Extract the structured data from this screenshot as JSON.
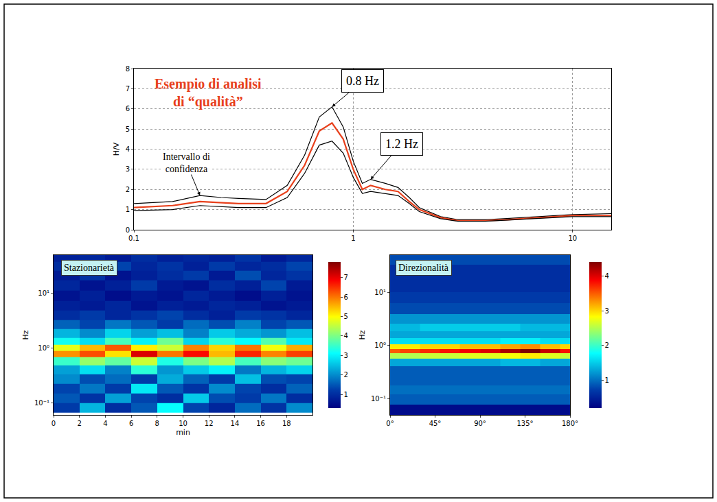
{
  "chart_data": [
    {
      "type": "line",
      "title": "Esempio di analisi di “qualità”",
      "color": "#e8401c",
      "ylabel": "H/V",
      "log": "x",
      "grid": true,
      "x": [
        0.1,
        0.15,
        0.2,
        0.25,
        0.3,
        0.4,
        0.5,
        0.6,
        0.7,
        0.8,
        0.9,
        1.0,
        1.1,
        1.2,
        1.4,
        1.6,
        1.8,
        2.0,
        2.5,
        3,
        4,
        5,
        7,
        10,
        15
      ],
      "series": [
        {
          "color": "#000000",
          "line_style": "solid",
          "values": [
            1.3,
            1.4,
            1.7,
            1.6,
            1.55,
            1.5,
            2.2,
            3.7,
            5.6,
            6.1,
            5.1,
            3.4,
            2.3,
            2.5,
            2.3,
            2.1,
            1.6,
            1.1,
            0.65,
            0.5,
            0.5,
            0.55,
            0.65,
            0.75,
            0.8
          ]
        },
        {
          "color": "#e8401c",
          "line_style": "solid",
          "values": [
            1.1,
            1.2,
            1.4,
            1.35,
            1.3,
            1.3,
            1.9,
            3.2,
            4.9,
            5.3,
            4.5,
            3.0,
            2.0,
            2.2,
            2.0,
            1.9,
            1.4,
            1.0,
            0.6,
            0.45,
            0.45,
            0.5,
            0.6,
            0.7,
            0.7
          ]
        },
        {
          "color": "#000000",
          "line_style": "solid",
          "values": [
            0.95,
            1.0,
            1.2,
            1.15,
            1.1,
            1.1,
            1.6,
            2.8,
            4.2,
            4.4,
            3.8,
            2.6,
            1.8,
            1.9,
            1.8,
            1.7,
            1.3,
            0.9,
            0.55,
            0.42,
            0.42,
            0.47,
            0.57,
            0.65,
            0.65
          ]
        }
      ],
      "xlim": [
        0.1,
        15
      ],
      "xticks": [
        0.1,
        1,
        10
      ],
      "ylim": [
        0,
        8
      ],
      "yticks": [
        0,
        1,
        2,
        3,
        4,
        5,
        6,
        7,
        8
      ],
      "annotations": [
        {
          "text": "0.8 Hz",
          "x": 0.8,
          "y": 6.1
        },
        {
          "text": "1.2 Hz",
          "x": 1.2,
          "y": 2.5
        },
        {
          "text": "Intervallo di confidenza",
          "x": 0.2,
          "y": 1.7
        }
      ]
    },
    {
      "type": "heatmap",
      "title": "Stazionarietà",
      "xlabel": "min",
      "ylabel": "Hz",
      "log": "y",
      "color": "Jet",
      "x": [
        1,
        3,
        5,
        7,
        9,
        11,
        13,
        15,
        17,
        19
      ],
      "y": [
        0.08,
        0.12,
        0.18,
        0.27,
        0.4,
        0.6,
        0.8,
        1.0,
        1.3,
        1.8,
        2.7,
        4,
        6,
        9,
        14,
        21,
        32,
        45
      ],
      "cells": [
        [
          1.2,
          2.4,
          1.0,
          1.5,
          3.1,
          1.3,
          0.9,
          1.7,
          1.1,
          2.0
        ],
        [
          1.5,
          1.1,
          2.2,
          1.3,
          1.0,
          2.6,
          1.4,
          1.2,
          1.8,
          1.0
        ],
        [
          1.3,
          1.8,
          1.2,
          2.9,
          1.5,
          1.1,
          2.0,
          1.3,
          1.0,
          1.6
        ],
        [
          2.0,
          1.4,
          1.7,
          1.2,
          2.3,
          1.6,
          1.2,
          2.5,
          1.4,
          1.3
        ],
        [
          2.2,
          2.8,
          1.9,
          3.4,
          2.1,
          2.6,
          3.0,
          1.8,
          2.4,
          2.7
        ],
        [
          3.5,
          4.2,
          3.8,
          4.6,
          3.3,
          4.0,
          4.4,
          3.6,
          4.1,
          3.9
        ],
        [
          5.8,
          6.3,
          5.2,
          7.1,
          6.0,
          6.8,
          5.5,
          6.6,
          5.9,
          6.4
        ],
        [
          4.8,
          5.5,
          6.2,
          5.1,
          4.6,
          5.9,
          5.3,
          6.0,
          4.9,
          5.6
        ],
        [
          3.2,
          2.8,
          3.6,
          3.0,
          3.9,
          2.7,
          3.4,
          3.1,
          3.7,
          2.9
        ],
        [
          2.4,
          2.0,
          2.7,
          2.2,
          2.5,
          1.9,
          2.6,
          2.3,
          2.1,
          2.5
        ],
        [
          1.6,
          1.3,
          1.8,
          1.5,
          1.2,
          1.7,
          1.4,
          1.9,
          1.3,
          1.5
        ],
        [
          1.0,
          1.2,
          0.9,
          1.1,
          1.3,
          1.0,
          0.8,
          1.2,
          1.1,
          0.9
        ],
        [
          0.8,
          0.7,
          0.9,
          0.6,
          0.8,
          0.7,
          0.9,
          0.8,
          0.6,
          0.7
        ],
        [
          0.6,
          0.8,
          0.5,
          0.7,
          0.6,
          0.9,
          0.7,
          0.5,
          0.8,
          0.6
        ],
        [
          0.9,
          0.6,
          0.8,
          1.2,
          0.7,
          0.6,
          1.0,
          0.8,
          1.3,
          0.7
        ],
        [
          0.7,
          1.1,
          0.6,
          0.8,
          1.0,
          1.2,
          0.7,
          1.4,
          0.9,
          1.1
        ],
        [
          1.0,
          0.8,
          1.3,
          0.9,
          1.1,
          0.8,
          1.2,
          0.9,
          1.0,
          1.3
        ],
        [
          0.8,
          0.9,
          0.7,
          1.0,
          0.8,
          0.9,
          0.8,
          1.1,
          0.7,
          0.9
        ]
      ],
      "xlim": [
        0,
        20
      ],
      "xticks": [
        0,
        2,
        4,
        6,
        8,
        10,
        12,
        14,
        16,
        18
      ],
      "ylim": [
        0.06,
        50
      ],
      "yticks": [
        {
          "value": 0.1,
          "label": "10⁻¹"
        },
        {
          "value": 1,
          "label": "10⁰"
        },
        {
          "value": 10,
          "label": "10¹"
        }
      ],
      "colorbar": {
        "range": [
          0.3,
          7.8
        ],
        "ticks": [
          1,
          2,
          3,
          4,
          5,
          6,
          7
        ]
      }
    },
    {
      "type": "heatmap",
      "title": "Direzionalità",
      "ylabel": "Hz",
      "log": "y",
      "color": "Jet",
      "x": [
        0,
        20,
        40,
        60,
        80,
        100,
        120,
        140,
        160,
        180
      ],
      "y": [
        0.06,
        0.1,
        0.15,
        0.22,
        0.33,
        0.5,
        0.65,
        0.8,
        0.95,
        1.2,
        1.6,
        2.2,
        3,
        5,
        8,
        13,
        24,
        45
      ],
      "cells": [
        [
          0.3,
          0.3,
          0.3,
          0.3,
          0.3,
          0.3,
          0.3,
          0.3,
          0.3,
          0.3
        ],
        [
          0.9,
          0.9,
          0.9,
          0.9,
          0.9,
          0.9,
          0.9,
          0.9,
          0.9,
          0.9
        ],
        [
          1.0,
          1.0,
          1.0,
          1.0,
          1.0,
          1.0,
          1.0,
          1.0,
          1.0,
          1.0
        ],
        [
          0.9,
          0.9,
          0.9,
          0.9,
          0.9,
          0.9,
          0.9,
          0.9,
          0.9,
          0.9
        ],
        [
          0.9,
          0.9,
          0.9,
          0.9,
          0.9,
          0.9,
          0.9,
          0.9,
          0.9,
          0.9
        ],
        [
          1.3,
          1.3,
          1.3,
          1.3,
          1.3,
          1.3,
          1.4,
          1.4,
          1.3,
          1.3
        ],
        [
          2.5,
          2.5,
          2.6,
          2.6,
          2.7,
          2.7,
          2.8,
          2.9,
          2.7,
          2.6
        ],
        [
          3.5,
          3.6,
          3.7,
          3.8,
          3.9,
          4.0,
          4.2,
          4.4,
          4.1,
          3.8
        ],
        [
          2.9,
          2.9,
          3.0,
          3.0,
          3.1,
          3.1,
          3.2,
          3.3,
          3.1,
          3.0
        ],
        [
          1.6,
          1.6,
          1.6,
          1.6,
          1.6,
          1.6,
          1.7,
          1.7,
          1.6,
          1.6
        ],
        [
          1.3,
          1.3,
          1.3,
          1.3,
          1.3,
          1.3,
          1.3,
          1.3,
          1.3,
          1.3
        ],
        [
          1.4,
          1.4,
          1.5,
          1.5,
          1.5,
          1.5,
          1.5,
          1.4,
          1.4,
          1.4
        ],
        [
          1.2,
          1.2,
          1.2,
          1.2,
          1.2,
          1.2,
          1.2,
          1.2,
          1.2,
          1.2
        ],
        [
          0.8,
          0.8,
          0.8,
          0.8,
          0.8,
          0.8,
          0.8,
          0.8,
          0.8,
          0.8
        ],
        [
          0.7,
          0.7,
          0.7,
          0.7,
          0.7,
          0.7,
          0.7,
          0.7,
          0.7,
          0.7
        ],
        [
          0.6,
          0.6,
          0.6,
          0.6,
          0.6,
          0.6,
          0.6,
          0.6,
          0.6,
          0.6
        ],
        [
          0.6,
          0.6,
          0.6,
          0.6,
          0.6,
          0.6,
          0.6,
          0.6,
          0.6,
          0.6
        ],
        [
          0.8,
          0.8,
          0.8,
          0.8,
          0.8,
          0.8,
          0.8,
          0.8,
          0.8,
          0.8
        ]
      ],
      "xlim": [
        0,
        180
      ],
      "xticks": [
        {
          "value": 0,
          "label": "0°"
        },
        {
          "value": 45,
          "label": "45°"
        },
        {
          "value": 90,
          "label": "90°"
        },
        {
          "value": 135,
          "label": "135°"
        },
        {
          "value": 180,
          "label": "180°"
        }
      ],
      "ylim": [
        0.05,
        50
      ],
      "yticks": [
        {
          "value": 0.1,
          "label": "10⁻¹"
        },
        {
          "value": 1,
          "label": "10⁰"
        },
        {
          "value": 10,
          "label": "10¹"
        }
      ],
      "colorbar": {
        "range": [
          0.2,
          4.4
        ],
        "ticks": [
          1,
          2,
          3,
          4
        ]
      }
    }
  ]
}
